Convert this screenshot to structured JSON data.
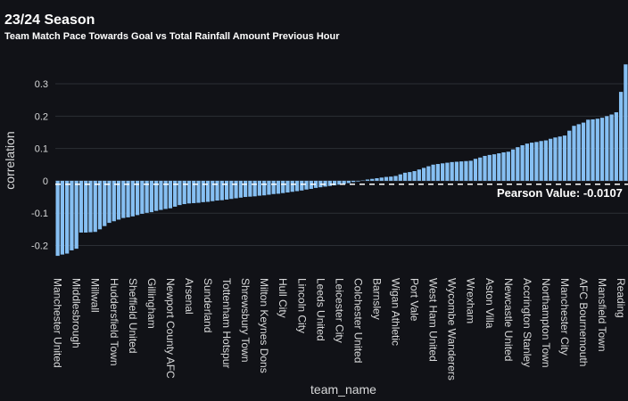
{
  "chart_data": {
    "type": "bar",
    "title": "23/24 Season",
    "subtitle": "Team Match Pace Towards Goal vs Total Rainfall Amount Previous Hour",
    "x_label": "team_name",
    "y_label": "correlation",
    "color": "#86bff2",
    "grid": true,
    "ylim": [
      -0.24,
      0.38
    ],
    "yticks": [
      -0.2,
      -0.1,
      0,
      0.1,
      0.2,
      0.3
    ],
    "annotation": {
      "text": "Pearson Value: -0.0107",
      "value": -0.0107
    },
    "categories": [
      "Manchester United",
      null,
      null,
      null,
      "Middlesbrough",
      null,
      null,
      null,
      "Millwall",
      null,
      null,
      null,
      "Huddersfield Town",
      null,
      null,
      null,
      "Sheffield United",
      null,
      null,
      null,
      "Gillingham",
      null,
      null,
      null,
      "Newport County AFC",
      null,
      null,
      null,
      "Arsenal",
      null,
      null,
      null,
      "Sunderland",
      null,
      null,
      null,
      "Tottenham Hotspur",
      null,
      null,
      null,
      "Shrewsbury Town",
      null,
      null,
      null,
      "Milton Keynes Dons",
      null,
      null,
      null,
      "Hull City",
      null,
      null,
      null,
      "Lincoln City",
      null,
      null,
      null,
      "Leeds United",
      null,
      null,
      null,
      "Leicester City",
      null,
      null,
      null,
      "Colchester United",
      null,
      null,
      null,
      "Barnsley",
      null,
      null,
      null,
      "Wigan Athletic",
      null,
      null,
      null,
      "Port Vale",
      null,
      null,
      null,
      "West Ham United",
      null,
      null,
      null,
      "Wycombe Wanderers",
      null,
      null,
      null,
      "Wrexham",
      null,
      null,
      null,
      "Aston Villa",
      null,
      null,
      null,
      "Newcastle United",
      null,
      null,
      null,
      "Accrington Stanley",
      null,
      null,
      null,
      "Northampton Town",
      null,
      null,
      null,
      "Manchester City",
      null,
      null,
      null,
      "AFC Bournemouth",
      null,
      null,
      null,
      "Mansfield Town",
      null,
      null,
      null,
      "Reading",
      null
    ],
    "values": [
      -0.232,
      -0.228,
      -0.225,
      -0.215,
      -0.21,
      -0.16,
      -0.16,
      -0.159,
      -0.158,
      -0.15,
      -0.14,
      -0.13,
      -0.125,
      -0.12,
      -0.115,
      -0.113,
      -0.11,
      -0.106,
      -0.102,
      -0.099,
      -0.097,
      -0.093,
      -0.09,
      -0.087,
      -0.085,
      -0.08,
      -0.075,
      -0.072,
      -0.07,
      -0.069,
      -0.068,
      -0.066,
      -0.065,
      -0.063,
      -0.061,
      -0.06,
      -0.058,
      -0.056,
      -0.054,
      -0.052,
      -0.05,
      -0.049,
      -0.048,
      -0.046,
      -0.045,
      -0.043,
      -0.041,
      -0.04,
      -0.038,
      -0.036,
      -0.034,
      -0.032,
      -0.03,
      -0.027,
      -0.025,
      -0.022,
      -0.02,
      -0.018,
      -0.016,
      -0.014,
      -0.012,
      -0.01,
      -0.007,
      -0.004,
      -0.002,
      0.001,
      0.004,
      0.006,
      0.008,
      0.01,
      0.012,
      0.013,
      0.015,
      0.02,
      0.025,
      0.027,
      0.03,
      0.035,
      0.04,
      0.045,
      0.05,
      0.052,
      0.054,
      0.056,
      0.058,
      0.059,
      0.06,
      0.061,
      0.062,
      0.068,
      0.072,
      0.077,
      0.08,
      0.082,
      0.085,
      0.088,
      0.09,
      0.097,
      0.104,
      0.11,
      0.115,
      0.118,
      0.12,
      0.123,
      0.125,
      0.13,
      0.134,
      0.137,
      0.14,
      0.155,
      0.17,
      0.175,
      0.18,
      0.189,
      0.19,
      0.192,
      0.195,
      0.2,
      0.205,
      0.212,
      0.275,
      0.36
    ]
  }
}
